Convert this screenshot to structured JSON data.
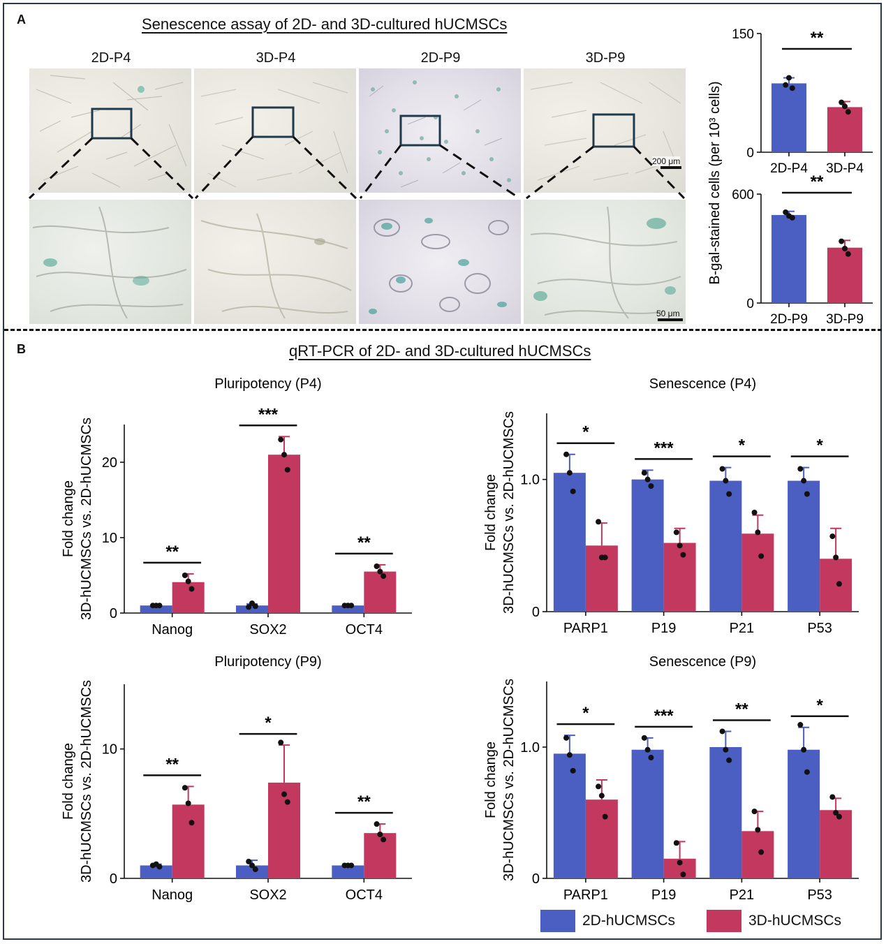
{
  "panel_a": {
    "letter": "A",
    "title": "Senescence assay of 2D- and 3D-cultured hUCMSCs",
    "image_labels": [
      "2D-P4",
      "3D-P4",
      "2D-P9",
      "3D-P9"
    ],
    "scale_bar_low_mag": "200 μm",
    "scale_bar_high_mag": "50 μm",
    "shared_ylabel": "B-gal-stained cells (per 10³ cells)"
  },
  "panel_b": {
    "letter": "B",
    "title": "qRT-PCR of 2D- and 3D-cultured hUCMSCs"
  },
  "legend": {
    "items": [
      {
        "label": "2D-hUCMSCs",
        "color": "#4a5fc1"
      },
      {
        "label": "3D-hUCMSCs",
        "color": "#c2385e"
      }
    ]
  },
  "colors": {
    "blue": "#4a5fc1",
    "red": "#c2385e",
    "frame": "#2b3a44"
  },
  "chart_data": [
    {
      "id": "bgal_p4",
      "type": "bar",
      "categories": [
        "2D-P4",
        "3D-P4"
      ],
      "values": [
        87,
        57
      ],
      "errors": [
        7,
        7
      ],
      "points": [
        [
          85,
          94,
          81
        ],
        [
          63,
          58,
          51
        ]
      ],
      "ylim": [
        0,
        150
      ],
      "yticks": [
        0,
        150
      ],
      "ylabel": "B-gal-stained cells (per 10³ cells)",
      "sig": [
        "**"
      ]
    },
    {
      "id": "bgal_p9",
      "type": "bar",
      "categories": [
        "2D-P9",
        "3D-P9"
      ],
      "values": [
        485,
        305
      ],
      "errors": [
        20,
        40
      ],
      "points": [
        [
          500,
          480,
          470
        ],
        [
          340,
          300,
          270
        ]
      ],
      "ylim": [
        0,
        600
      ],
      "yticks": [
        0,
        600
      ],
      "sig": [
        "**"
      ]
    },
    {
      "id": "pluri_p4",
      "type": "bar",
      "title": "Pluripotency (P4)",
      "ylabel": [
        "Fold change",
        "3D-hUCMSCs vs. 2D-hUCMSCs"
      ],
      "categories": [
        "Nanog",
        "SOX2",
        "OCT4"
      ],
      "series": [
        {
          "values": [
            1.0,
            1.0,
            1.0
          ],
          "errors": [
            0.1,
            0.2,
            0.1
          ],
          "points": [
            [
              1.0,
              1.0,
              1.0
            ],
            [
              0.8,
              1.3,
              0.9
            ],
            [
              1.0,
              1.0,
              1.0
            ]
          ]
        },
        {
          "values": [
            4.1,
            21.0,
            5.5
          ],
          "errors": [
            1.1,
            2.4,
            0.9
          ],
          "points": [
            [
              5.0,
              4.2,
              3.2
            ],
            [
              23.0,
              21.0,
              19.0
            ],
            [
              6.2,
              5.5,
              4.9
            ]
          ]
        }
      ],
      "ylim": [
        0,
        25
      ],
      "yticks": [
        0,
        10,
        20
      ],
      "sig": [
        "**",
        "***",
        "**"
      ]
    },
    {
      "id": "sen_p4",
      "type": "bar",
      "title": "Senescence (P4)",
      "ylabel": [
        "Fold change",
        "3D-hUCMSCs vs. 2D-hUCMSCs"
      ],
      "categories": [
        "PARP1",
        "P19",
        "P21",
        "P53"
      ],
      "series": [
        {
          "values": [
            1.05,
            1.0,
            0.99,
            0.99
          ],
          "errors": [
            0.14,
            0.07,
            0.1,
            0.1
          ],
          "points": [
            [
              1.19,
              1.05,
              0.91
            ],
            [
              1.05,
              1.0,
              0.95
            ],
            [
              1.08,
              0.99,
              0.89
            ],
            [
              1.08,
              0.99,
              0.89
            ]
          ]
        },
        {
          "values": [
            0.5,
            0.52,
            0.59,
            0.4
          ],
          "errors": [
            0.17,
            0.11,
            0.14,
            0.23
          ],
          "points": [
            [
              0.68,
              0.41,
              0.41
            ],
            [
              0.6,
              0.5,
              0.43
            ],
            [
              0.75,
              0.6,
              0.42
            ],
            [
              0.57,
              0.41,
              0.21
            ]
          ]
        }
      ],
      "ylim": [
        0,
        1.5
      ],
      "yticks": [
        0,
        1.0
      ],
      "sig": [
        "*",
        "***",
        "*",
        "*"
      ]
    },
    {
      "id": "pluri_p9",
      "type": "bar",
      "title": "Pluripotency (P9)",
      "ylabel": [
        "Fold change",
        "3D-hUCMSCs vs. 2D-hUCMSCs"
      ],
      "categories": [
        "Nanog",
        "SOX2",
        "OCT4"
      ],
      "series": [
        {
          "values": [
            1.0,
            1.0,
            1.0
          ],
          "errors": [
            0.1,
            0.4,
            0.05
          ],
          "points": [
            [
              1.0,
              1.1,
              0.9
            ],
            [
              1.3,
              1.0,
              0.7
            ],
            [
              1.0,
              1.0,
              1.0
            ]
          ]
        },
        {
          "values": [
            5.7,
            7.4,
            3.5
          ],
          "errors": [
            1.4,
            2.9,
            0.7
          ],
          "points": [
            [
              7.0,
              5.8,
              4.3
            ],
            [
              10.5,
              6.5,
              5.9
            ],
            [
              4.2,
              3.4,
              3.0
            ]
          ]
        }
      ],
      "ylim": [
        0,
        15
      ],
      "yticks": [
        0,
        10
      ],
      "sig": [
        "**",
        "*",
        "**"
      ]
    },
    {
      "id": "sen_p9",
      "type": "bar",
      "title": "Senescence (P9)",
      "ylabel": [
        "Fold change",
        "3D-hUCMSCs vs. 2D-hUCMSCs"
      ],
      "categories": [
        "PARP1",
        "P19",
        "P21",
        "P53"
      ],
      "series": [
        {
          "values": [
            0.95,
            0.98,
            1.0,
            0.98
          ],
          "errors": [
            0.14,
            0.09,
            0.12,
            0.17
          ],
          "points": [
            [
              1.07,
              0.94,
              0.82
            ],
            [
              1.07,
              0.98,
              0.92
            ],
            [
              1.12,
              0.98,
              0.9
            ],
            [
              1.17,
              0.98,
              0.81
            ]
          ]
        },
        {
          "values": [
            0.6,
            0.15,
            0.36,
            0.52
          ],
          "errors": [
            0.15,
            0.13,
            0.15,
            0.09
          ],
          "points": [
            [
              0.7,
              0.63,
              0.47
            ],
            [
              0.27,
              0.12,
              0.03
            ],
            [
              0.51,
              0.37,
              0.2
            ],
            [
              0.62,
              0.5,
              0.47
            ]
          ]
        }
      ],
      "ylim": [
        0,
        1.5
      ],
      "yticks": [
        0,
        1.0
      ],
      "sig": [
        "*",
        "***",
        "**",
        "*"
      ]
    }
  ]
}
